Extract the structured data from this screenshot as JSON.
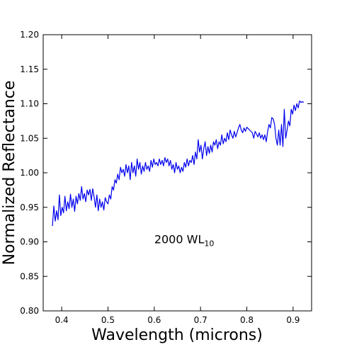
{
  "chart_data": {
    "type": "line",
    "title": "",
    "xlabel": "Wavelength (microns)",
    "ylabel": "Normalized Reflectance",
    "xlim": [
      0.36,
      0.94
    ],
    "ylim": [
      0.8,
      1.2
    ],
    "x_ticks": [
      0.4,
      0.5,
      0.6,
      0.7,
      0.8,
      0.9
    ],
    "x_tick_labels": [
      "0.4",
      "0.5",
      "0.6",
      "0.7",
      "0.8",
      "0.9"
    ],
    "y_ticks": [
      0.8,
      0.85,
      0.9,
      0.95,
      1.0,
      1.05,
      1.1,
      1.15,
      1.2
    ],
    "y_tick_labels": [
      "0.80",
      "0.85",
      "0.90",
      "0.95",
      "1.00",
      "1.05",
      "1.10",
      "1.15",
      "1.20"
    ],
    "grid": false,
    "annotation": {
      "text": "2000 WL",
      "subscript": "10",
      "x": 0.6,
      "y": 0.9
    },
    "series": [
      {
        "color": "#0000ee",
        "x": [
          0.38,
          0.383,
          0.386,
          0.389,
          0.392,
          0.395,
          0.398,
          0.401,
          0.404,
          0.407,
          0.41,
          0.413,
          0.416,
          0.419,
          0.422,
          0.425,
          0.428,
          0.431,
          0.434,
          0.437,
          0.44,
          0.443,
          0.446,
          0.449,
          0.452,
          0.455,
          0.458,
          0.461,
          0.464,
          0.467,
          0.47,
          0.473,
          0.476,
          0.479,
          0.482,
          0.485,
          0.488,
          0.491,
          0.494,
          0.497,
          0.5,
          0.503,
          0.506,
          0.509,
          0.512,
          0.515,
          0.518,
          0.521,
          0.524,
          0.527,
          0.53,
          0.533,
          0.536,
          0.539,
          0.542,
          0.545,
          0.548,
          0.551,
          0.554,
          0.557,
          0.56,
          0.563,
          0.566,
          0.569,
          0.572,
          0.575,
          0.578,
          0.581,
          0.584,
          0.587,
          0.59,
          0.593,
          0.596,
          0.599,
          0.602,
          0.605,
          0.608,
          0.611,
          0.614,
          0.617,
          0.62,
          0.623,
          0.626,
          0.629,
          0.632,
          0.635,
          0.638,
          0.641,
          0.644,
          0.647,
          0.65,
          0.653,
          0.656,
          0.659,
          0.662,
          0.665,
          0.668,
          0.671,
          0.674,
          0.677,
          0.68,
          0.683,
          0.686,
          0.689,
          0.692,
          0.695,
          0.698,
          0.701,
          0.704,
          0.707,
          0.71,
          0.713,
          0.716,
          0.719,
          0.722,
          0.725,
          0.728,
          0.731,
          0.734,
          0.737,
          0.74,
          0.743,
          0.746,
          0.749,
          0.752,
          0.755,
          0.758,
          0.761,
          0.764,
          0.767,
          0.77,
          0.773,
          0.776,
          0.779,
          0.782,
          0.785,
          0.788,
          0.791,
          0.794,
          0.797,
          0.8,
          0.803,
          0.806,
          0.809,
          0.812,
          0.815,
          0.818,
          0.821,
          0.824,
          0.827,
          0.83,
          0.833,
          0.836,
          0.839,
          0.842,
          0.845,
          0.848,
          0.851,
          0.854,
          0.857,
          0.86,
          0.863,
          0.866,
          0.869,
          0.872,
          0.875,
          0.878,
          0.881,
          0.884,
          0.887,
          0.89,
          0.893,
          0.896,
          0.899,
          0.902,
          0.905,
          0.908,
          0.911,
          0.914,
          0.917,
          0.92,
          0.923
        ],
        "y": [
          0.923,
          0.952,
          0.93,
          0.945,
          0.932,
          0.968,
          0.938,
          0.95,
          0.942,
          0.966,
          0.945,
          0.958,
          0.948,
          0.969,
          0.95,
          0.962,
          0.944,
          0.966,
          0.955,
          0.97,
          0.96,
          0.98,
          0.962,
          0.97,
          0.958,
          0.975,
          0.968,
          0.976,
          0.96,
          0.977,
          0.965,
          0.95,
          0.968,
          0.945,
          0.962,
          0.95,
          0.958,
          0.946,
          0.964,
          0.958,
          0.955,
          0.968,
          0.962,
          0.98,
          0.975,
          0.99,
          0.985,
          0.998,
          0.99,
          1.008,
          1.0,
          1.005,
          0.995,
          1.012,
          1.0,
          1.01,
          0.99,
          1.015,
          1.0,
          1.01,
          0.995,
          1.02,
          1.005,
          1.015,
          0.998,
          1.01,
          1.002,
          1.015,
          1.005,
          1.01,
          1.002,
          1.018,
          1.008,
          1.02,
          1.012,
          1.015,
          1.01,
          1.02,
          1.012,
          1.018,
          1.01,
          1.022,
          1.015,
          1.02,
          1.01,
          1.018,
          1.005,
          1.012,
          1.0,
          1.015,
          1.005,
          1.01,
          1.0,
          1.008,
          1.002,
          1.015,
          1.008,
          1.02,
          1.01,
          1.018,
          1.015,
          1.025,
          1.012,
          1.03,
          1.02,
          1.048,
          1.03,
          1.04,
          1.02,
          1.035,
          1.045,
          1.025,
          1.038,
          1.028,
          1.04,
          1.03,
          1.045,
          1.04,
          1.048,
          1.035,
          1.045,
          1.04,
          1.055,
          1.042,
          1.05,
          1.045,
          1.058,
          1.048,
          1.062,
          1.055,
          1.05,
          1.06,
          1.052,
          1.058,
          1.065,
          1.07,
          1.062,
          1.058,
          1.065,
          1.06,
          1.066,
          1.064,
          1.062,
          1.06,
          1.058,
          1.05,
          1.06,
          1.056,
          1.052,
          1.058,
          1.05,
          1.055,
          1.048,
          1.055,
          1.045,
          1.06,
          1.07,
          1.065,
          1.08,
          1.078,
          1.07,
          1.05,
          1.04,
          1.062,
          1.04,
          1.07,
          1.038,
          1.092,
          1.05,
          1.062,
          1.075,
          1.068,
          1.092,
          1.085,
          1.098,
          1.09,
          1.1,
          1.094,
          1.104,
          1.102,
          1.103,
          1.102
        ]
      }
    ]
  }
}
